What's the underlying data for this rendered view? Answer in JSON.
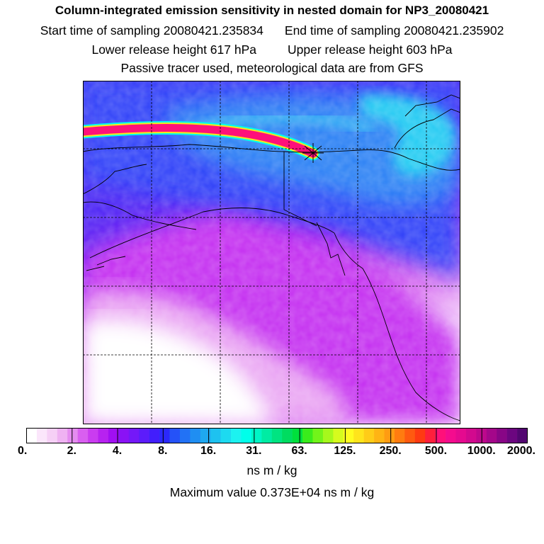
{
  "header": {
    "title": "Column-integrated emission sensitivity in nested domain for NP3_20080421",
    "start_time": "Start time of sampling 20080421.235834",
    "end_time": "End time of sampling 20080421.235902",
    "lower_release": "Lower release height  617 hPa",
    "upper_release": "Upper release height  603 hPa",
    "tracer_note": "Passive tracer used, meteorological data are from GFS"
  },
  "colorbar": {
    "ticks": [
      "0.",
      "2.",
      "4.",
      "8.",
      "16.",
      "31.",
      "63.",
      "125.",
      "250.",
      "500.",
      "1000.",
      "2000."
    ],
    "colors": [
      "#ffffff",
      "#fbe6fb",
      "#f6d0f6",
      "#efb2f2",
      "#e58cf0",
      "#d95ff0",
      "#ca3cf0",
      "#b722f0",
      "#a10ff2",
      "#8a12f5",
      "#7418f8",
      "#5c1cfb",
      "#421efc",
      "#2b28fc",
      "#2552f8",
      "#2272f5",
      "#1f8ef2",
      "#1fa8f0",
      "#1ec2f0",
      "#1ddaf0",
      "#1cf2f0",
      "#00ffea",
      "#00f5c6",
      "#00eca3",
      "#00e481",
      "#00dc60",
      "#00e03c",
      "#3aec1c",
      "#72f41a",
      "#a6f81c",
      "#d6fb1e",
      "#fffc20",
      "#ffe41c",
      "#ffcc18",
      "#ffb414",
      "#ff9c12",
      "#ff7c10",
      "#ff5a10",
      "#ff3a12",
      "#ff1f3c",
      "#ff107a",
      "#f40c8e",
      "#e50a8f",
      "#d2098e",
      "#bd088c",
      "#a4078a",
      "#880686",
      "#6c0680",
      "#520670"
    ],
    "units": "ns m / kg",
    "max_value": "Maximum value  0.373E+04 ns m / kg"
  },
  "map": {
    "release_marker": "star-marker-icon",
    "plume_colors": [
      "#00ffea",
      "#ffe41c",
      "#ff107a",
      "#ffe41c",
      "#00ffea"
    ]
  }
}
